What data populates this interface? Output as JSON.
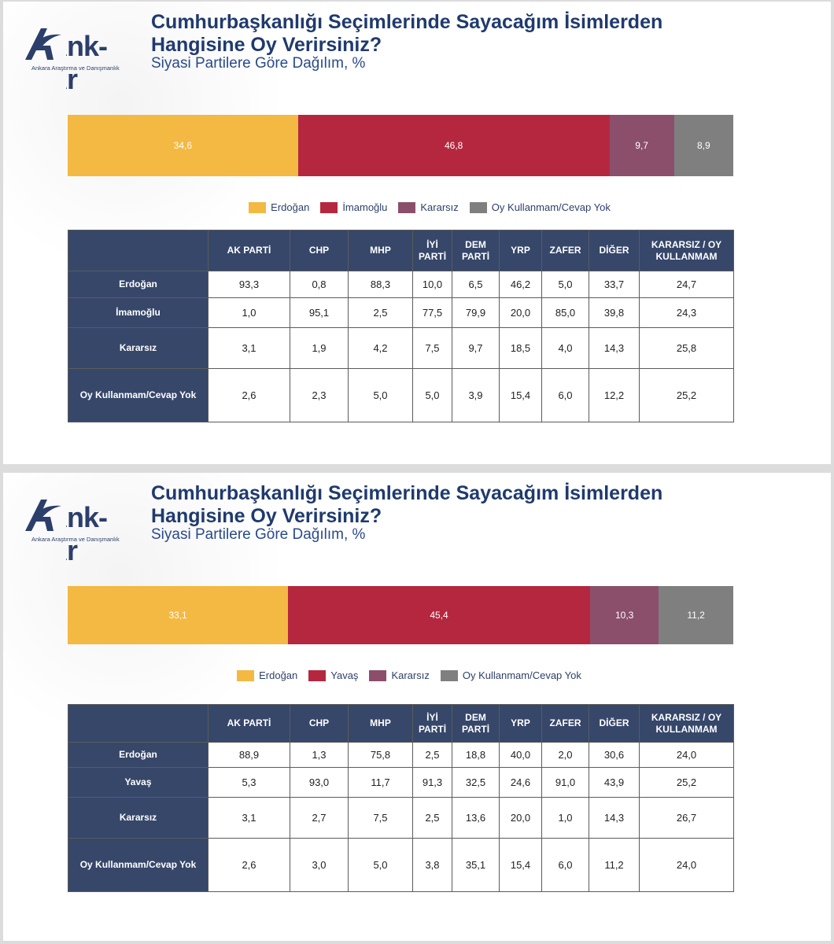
{
  "brand": {
    "name": "Ank-Ar",
    "tagline": "Ankara Araştırma ve Danışmanlık"
  },
  "colors": {
    "erdogan": "#f3b942",
    "rival": "#b5273f",
    "kararsiz": "#8b4f6b",
    "oy_yok": "#7f7f7f",
    "header": "#36476a",
    "title": "#1f3a6e"
  },
  "columns": [
    "",
    "AK PARTİ",
    "CHP",
    "MHP",
    "İYİ PARTİ",
    "DEM PARTİ",
    "YRP",
    "ZAFER",
    "DİĞER",
    "KARARSIZ / OY KULLANMAM"
  ],
  "chart_data": [
    {
      "type": "bar",
      "title": "Cumhurbaşkanlığı Seçimlerinde Sayacağım İsimlerden Hangisine Oy Verirsiniz?",
      "subtitle": "Siyasi Partilere Göre Dağılım, %",
      "stacked": true,
      "legend_position": "bottom",
      "series": [
        {
          "name": "Erdoğan",
          "value": 34.6,
          "label": "34,6"
        },
        {
          "name": "İmamoğlu",
          "value": 46.8,
          "label": "46,8"
        },
        {
          "name": "Kararsız",
          "value": 9.7,
          "label": "9,7"
        },
        {
          "name": "Oy Kullanmam/Cevap Yok",
          "value": 8.9,
          "label": "8,9"
        }
      ],
      "table": {
        "rows": [
          {
            "label": "Erdoğan",
            "values": [
              "93,3",
              "0,8",
              "88,3",
              "10,0",
              "6,5",
              "46,2",
              "5,0",
              "33,7",
              "24,7"
            ]
          },
          {
            "label": "İmamoğlu",
            "values": [
              "1,0",
              "95,1",
              "2,5",
              "77,5",
              "79,9",
              "20,0",
              "85,0",
              "39,8",
              "24,3"
            ]
          },
          {
            "label": "Kararsız",
            "values": [
              "3,1",
              "1,9",
              "4,2",
              "7,5",
              "9,7",
              "18,5",
              "4,0",
              "14,3",
              "25,8"
            ]
          },
          {
            "label": "Oy Kullanmam/Cevap Yok",
            "values": [
              "2,6",
              "2,3",
              "5,0",
              "5,0",
              "3,9",
              "15,4",
              "6,0",
              "12,2",
              "25,2"
            ]
          }
        ]
      }
    },
    {
      "type": "bar",
      "title": "Cumhurbaşkanlığı Seçimlerinde Sayacağım İsimlerden Hangisine Oy Verirsiniz?",
      "subtitle": "Siyasi Partilere Göre Dağılım, %",
      "stacked": true,
      "legend_position": "bottom",
      "series": [
        {
          "name": "Erdoğan",
          "value": 33.1,
          "label": "33,1"
        },
        {
          "name": "Yavaş",
          "value": 45.4,
          "label": "45,4"
        },
        {
          "name": "Kararsız",
          "value": 10.3,
          "label": "10,3"
        },
        {
          "name": "Oy Kullanmam/Cevap Yok",
          "value": 11.2,
          "label": "11,2"
        }
      ],
      "table": {
        "rows": [
          {
            "label": "Erdoğan",
            "values": [
              "88,9",
              "1,3",
              "75,8",
              "2,5",
              "18,8",
              "40,0",
              "2,0",
              "30,6",
              "24,0"
            ]
          },
          {
            "label": "Yavaş",
            "values": [
              "5,3",
              "93,0",
              "11,7",
              "91,3",
              "32,5",
              "24,6",
              "91,0",
              "43,9",
              "25,2"
            ]
          },
          {
            "label": "Kararsız",
            "values": [
              "3,1",
              "2,7",
              "7,5",
              "2,5",
              "13,6",
              "20,0",
              "1,0",
              "14,3",
              "26,7"
            ]
          },
          {
            "label": "Oy Kullanmam/Cevap Yok",
            "values": [
              "2,6",
              "3,0",
              "5,0",
              "3,8",
              "35,1",
              "15,4",
              "6,0",
              "11,2",
              "24,0"
            ]
          }
        ]
      }
    }
  ]
}
